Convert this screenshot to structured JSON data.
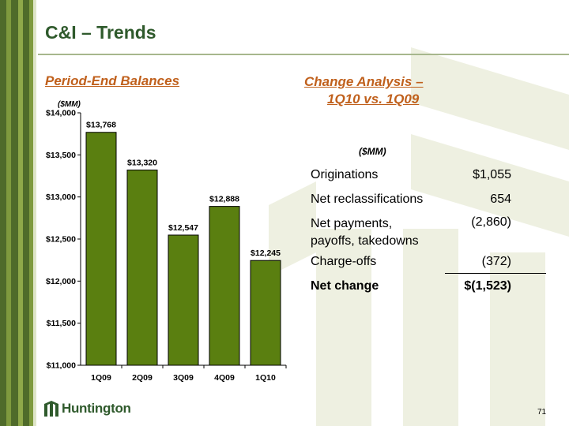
{
  "title": "C&I – Trends",
  "left_heading": "Period-End Balances",
  "left_unit": "($MM)",
  "right_heading_line1": "Change Analysis –",
  "right_heading_line2": "1Q10 vs. 1Q09",
  "right_unit": "($MM)",
  "change_table": [
    {
      "label": "Originations",
      "value": "$1,055"
    },
    {
      "label": "Net reclassifications",
      "value": "654"
    },
    {
      "label": "Net payments, payoffs, takedowns",
      "value": "(2,860)"
    },
    {
      "label": "Charge-offs",
      "value": "(372)"
    },
    {
      "label": "Net change",
      "value": "$(1,523)"
    }
  ],
  "logo_text": "Huntington",
  "page_number": "71",
  "colors": {
    "accent": "#c0601c",
    "title": "#2f5a2c",
    "bar": "#5a7f10",
    "stripe_dark": "#4f6b2a",
    "stripe_light": "#7f9a3e",
    "deco": "#eef0e1"
  },
  "chart_data": {
    "type": "bar",
    "categories": [
      "1Q09",
      "2Q09",
      "3Q09",
      "4Q09",
      "1Q10"
    ],
    "values": [
      13768,
      13320,
      12547,
      12888,
      12245
    ],
    "value_labels": [
      "$13,768",
      "$13,320",
      "$12,547",
      "$12,888",
      "$12,245"
    ],
    "ylim": [
      11000,
      14000
    ],
    "yticks": [
      11000,
      11500,
      12000,
      12500,
      13000,
      13500,
      14000
    ],
    "ytick_labels": [
      "$11,000",
      "$11,500",
      "$12,000",
      "$12,500",
      "$13,000",
      "$13,500",
      "$14,000"
    ],
    "grid": false,
    "legend": "none"
  }
}
